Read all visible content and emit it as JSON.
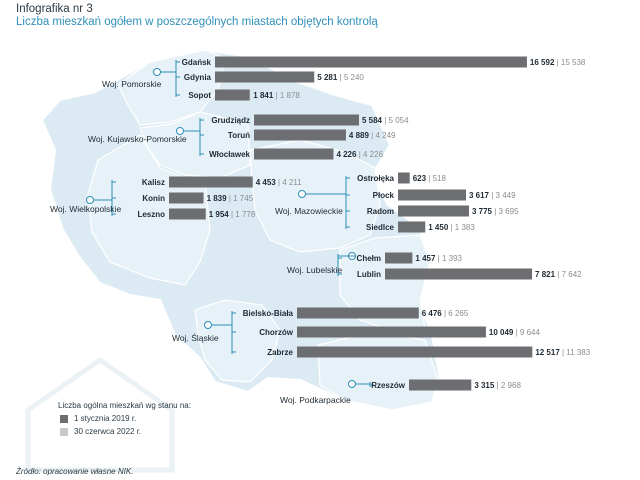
{
  "header": {
    "title": "Infografika nr 3",
    "subtitle": "Liczba mieszkań ogółem w poszczególnych miastach objętych kontrolą"
  },
  "source": "Źródło: opracowanie własne NIK.",
  "colors": {
    "map_fill": "#dcebf3",
    "map_stroke": "#ffffff",
    "region_fill": "#e6f2f8",
    "connector": "#2f8fb8",
    "bar_2019": "#6d6e71",
    "bar_2022": "#c9cacb",
    "subtitle": "#2f8fb8",
    "background_house": "#eaf2f6"
  },
  "legend": {
    "title": "Liczba ogólna mieszkań wg stanu na:",
    "items": [
      {
        "label": "1 stycznia 2019 r.",
        "color": "#6d6e71"
      },
      {
        "label": "30 czerwca 2022 r.",
        "color": "#c9cacb"
      }
    ]
  },
  "regions": [
    {
      "name": "Woj. Pomorskie"
    },
    {
      "name": "Woj. Kujawsko-Pomorskie"
    },
    {
      "name": "Woj. Wielkopolskie"
    },
    {
      "name": "Woj. Mazowieckie"
    },
    {
      "name": "Woj. Lubelskie"
    },
    {
      "name": "Woj. Śląskie"
    },
    {
      "name": "Woj. Podkarpackie"
    }
  ],
  "chart_data": {
    "type": "bar",
    "orientation": "horizontal",
    "series": [
      {
        "name": "1 stycznia 2019 r.",
        "color": "#6d6e71"
      },
      {
        "name": "30 czerwca 2022 r.",
        "color": "#c9cacb"
      }
    ],
    "groups": [
      {
        "region": "Woj. Pomorskie",
        "cities": [
          {
            "city": "Gdańsk",
            "v2019": 16592,
            "v2022": 15538,
            "label2019": "16 592",
            "label2022": "15 538"
          },
          {
            "city": "Gdynia",
            "v2019": 5281,
            "v2022": 5240,
            "label2019": "5 281",
            "label2022": "5 240"
          },
          {
            "city": "Sopot",
            "v2019": 1841,
            "v2022": 1878,
            "label2019": "1 841",
            "label2022": "1 878"
          }
        ]
      },
      {
        "region": "Woj. Kujawsko-Pomorskie",
        "cities": [
          {
            "city": "Grudziądz",
            "v2019": 5584,
            "v2022": 5054,
            "label2019": "5 584",
            "label2022": "5 054"
          },
          {
            "city": "Toruń",
            "v2019": 4889,
            "v2022": 4249,
            "label2019": "4 889",
            "label2022": "4 249"
          },
          {
            "city": "Włocławek",
            "v2019": 4226,
            "v2022": 4226,
            "label2019": "4 226",
            "label2022": "4 226"
          }
        ]
      },
      {
        "region": "Woj. Wielkopolskie",
        "cities": [
          {
            "city": "Kalisz",
            "v2019": 4453,
            "v2022": 4211,
            "label2019": "4 453",
            "label2022": "4 211"
          },
          {
            "city": "Konin",
            "v2019": 1839,
            "v2022": 1745,
            "label2019": "1 839",
            "label2022": "1 745"
          },
          {
            "city": "Leszno",
            "v2019": 1954,
            "v2022": 1778,
            "label2019": "1 954",
            "label2022": "1 778"
          }
        ]
      },
      {
        "region": "Woj. Mazowieckie",
        "cities": [
          {
            "city": "Ostrołęka",
            "v2019": 623,
            "v2022": 518,
            "label2019": "623",
            "label2022": "518"
          },
          {
            "city": "Płock",
            "v2019": 3617,
            "v2022": 3449,
            "label2019": "3 617",
            "label2022": "3 449"
          },
          {
            "city": "Radom",
            "v2019": 3775,
            "v2022": 3695,
            "label2019": "3 775",
            "label2022": "3 695"
          },
          {
            "city": "Siedlce",
            "v2019": 1450,
            "v2022": 1383,
            "label2019": "1 450",
            "label2022": "1 383"
          }
        ]
      },
      {
        "region": "Woj. Lubelskie",
        "cities": [
          {
            "city": "Chełm",
            "v2019": 1457,
            "v2022": 1393,
            "label2019": "1 457",
            "label2022": "1 393"
          },
          {
            "city": "Lublin",
            "v2019": 7821,
            "v2022": 7642,
            "label2019": "7 821",
            "label2022": "7 642"
          }
        ]
      },
      {
        "region": "Woj. Śląskie",
        "cities": [
          {
            "city": "Bielsko-Biała",
            "v2019": 6476,
            "v2022": 6265,
            "label2019": "6 476",
            "label2022": "6 265"
          },
          {
            "city": "Chorzów",
            "v2019": 10049,
            "v2022": 9644,
            "label2019": "10 049",
            "label2022": "9 644"
          },
          {
            "city": "Zabrze",
            "v2019": 12517,
            "v2022": 11383,
            "label2019": "12 517",
            "label2022": "11 383"
          }
        ]
      },
      {
        "region": "Woj. Podkarpackie",
        "cities": [
          {
            "city": "Rzeszów",
            "v2019": 3315,
            "v2022": 2968,
            "label2019": "3 315",
            "label2022": "2 968"
          }
        ]
      }
    ]
  }
}
